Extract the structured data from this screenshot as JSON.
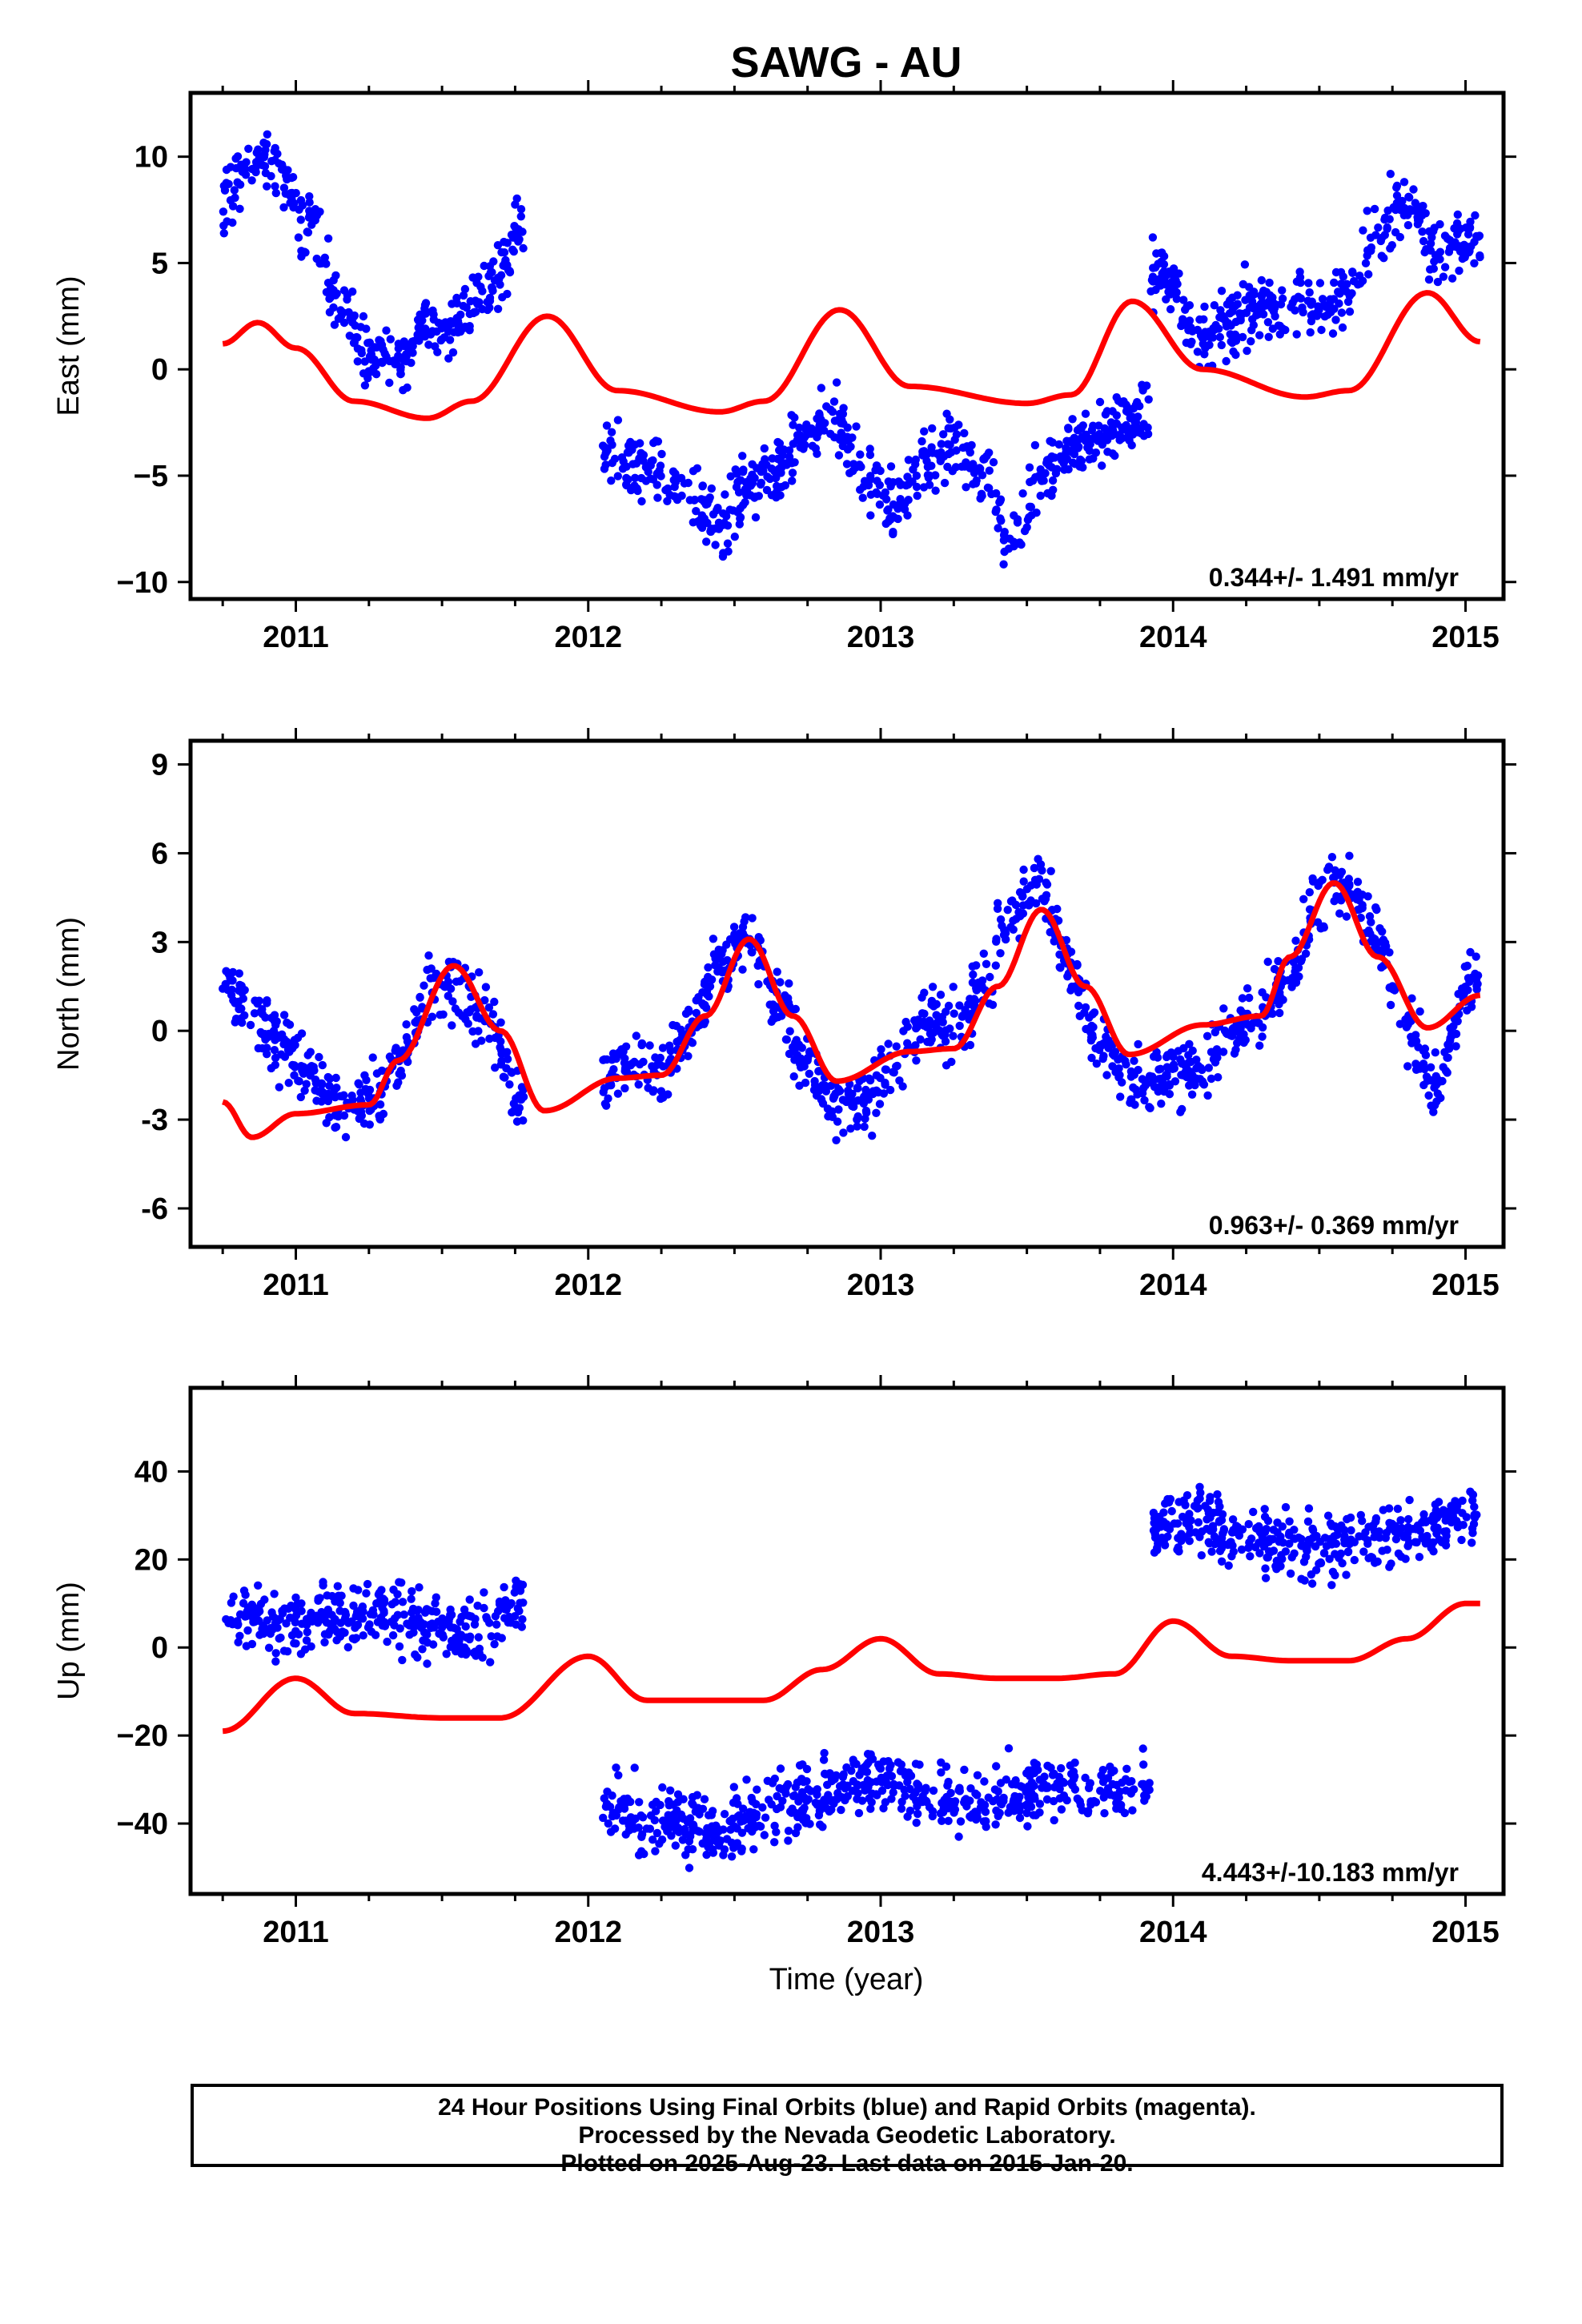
{
  "title": "SAWG - AU",
  "xlabel": "Time (year)",
  "caption": [
    "24 Hour Positions Using Final Orbits (blue) and Rapid Orbits (magenta).",
    "Processed by the Nevada Geodetic Laboratory.",
    "Plotted on 2025-Aug-23. Last data on 2015-Jan-20."
  ],
  "colors": {
    "data": "#0000ff",
    "fit": "#ff0000"
  },
  "chart_data": [
    {
      "type": "scatter",
      "panel": "east",
      "ylabel": "East (mm)",
      "xlim": [
        2010.64,
        2015.13
      ],
      "ylim": [
        -10.8,
        13
      ],
      "xticks": [
        2011,
        2012,
        2013,
        2014,
        2015
      ],
      "yticks": [
        -10,
        -5,
        0,
        5,
        10
      ],
      "ytick_labels": [
        "−10",
        "−5",
        "0",
        "5",
        "10"
      ],
      "rate": "0.344+/- 1.491 mm/yr",
      "data_segments": [
        {
          "x": [
            2010.75,
            2010.85,
            2010.95,
            2011.05,
            2011.15,
            2011.25,
            2011.35,
            2011.45,
            2011.55,
            2011.65,
            2011.78
          ],
          "y": [
            8.0,
            10.0,
            9.0,
            6.5,
            3.0,
            0.5,
            0.5,
            2.0,
            2.5,
            4.0,
            6.5
          ]
        },
        {
          "x": [
            2012.05,
            2012.15,
            2012.25,
            2012.35,
            2012.45,
            2012.55,
            2012.65,
            2012.75,
            2012.85,
            2012.95,
            2013.05,
            2013.15,
            2013.25,
            2013.35,
            2013.45,
            2013.55,
            2013.65,
            2013.75,
            2013.85,
            2013.92
          ],
          "y": [
            -4.0,
            -4.5,
            -5.0,
            -6.0,
            -7.5,
            -5.5,
            -4.5,
            -3.0,
            -2.5,
            -5.0,
            -6.5,
            -4.5,
            -3.5,
            -5.0,
            -8.0,
            -5.0,
            -3.5,
            -3.0,
            -2.5,
            -2.0
          ]
        },
        {
          "x": [
            2013.92,
            2014.0,
            2014.1,
            2014.2,
            2014.3,
            2014.4,
            2014.5,
            2014.6,
            2014.7,
            2014.8,
            2014.9,
            2015.0,
            2015.05
          ],
          "y": [
            4.5,
            4.0,
            1.0,
            2.5,
            3.0,
            3.0,
            3.0,
            3.5,
            6.5,
            8.0,
            5.5,
            6.0,
            6.0
          ]
        }
      ],
      "fit_curve": {
        "x": [
          2010.75,
          2010.87,
          2011.0,
          2011.2,
          2011.45,
          2011.6,
          2011.86,
          2012.1,
          2012.45,
          2012.6,
          2012.86,
          2013.1,
          2013.5,
          2013.65,
          2013.86,
          2014.1,
          2014.45,
          2014.6,
          2014.87,
          2015.05
        ],
        "y": [
          1.2,
          2.2,
          1.0,
          -1.5,
          -2.3,
          -1.5,
          2.5,
          -1.0,
          -2.0,
          -1.5,
          2.8,
          -0.8,
          -1.6,
          -1.2,
          3.2,
          0.0,
          -1.3,
          -1.0,
          3.6,
          1.3
        ]
      }
    },
    {
      "type": "scatter",
      "panel": "north",
      "ylabel": "North (mm)",
      "xlim": [
        2010.64,
        2015.13
      ],
      "ylim": [
        -7.3,
        9.8
      ],
      "xticks": [
        2011,
        2012,
        2013,
        2014,
        2015
      ],
      "yticks": [
        -6,
        -3,
        0,
        3,
        6,
        9
      ],
      "ytick_labels": [
        "-6",
        "-3",
        "0",
        "3",
        "6",
        "9"
      ],
      "rate": "0.963+/- 0.369 mm/yr",
      "data_segments": [
        {
          "x": [
            2010.75,
            2010.85,
            2010.95,
            2011.05,
            2011.15,
            2011.25,
            2011.35,
            2011.45,
            2011.55,
            2011.65,
            2011.78
          ],
          "y": [
            1.5,
            0.5,
            -0.5,
            -1.5,
            -2.5,
            -2.5,
            -1.0,
            1.0,
            1.5,
            0.5,
            -2.5
          ]
        },
        {
          "x": [
            2012.05,
            2012.15,
            2012.25,
            2012.35,
            2012.45,
            2012.55,
            2012.65,
            2012.75,
            2012.85,
            2012.95,
            2013.05,
            2013.15,
            2013.25,
            2013.35,
            2013.45,
            2013.55,
            2013.65,
            2013.75,
            2013.85,
            2013.92
          ],
          "y": [
            -1.5,
            -1.0,
            -1.5,
            0.0,
            2.5,
            3.0,
            1.0,
            -1.0,
            -2.5,
            -2.5,
            -1.0,
            0.5,
            0.0,
            1.5,
            4.0,
            5.0,
            2.0,
            -0.5,
            -1.5,
            -2.0
          ]
        },
        {
          "x": [
            2013.92,
            2014.0,
            2014.1,
            2014.2,
            2014.3,
            2014.4,
            2014.5,
            2014.6,
            2014.7,
            2014.8,
            2014.9,
            2015.0,
            2015.05
          ],
          "y": [
            -1.5,
            -1.5,
            -1.5,
            0.0,
            0.5,
            2.0,
            4.5,
            5.0,
            3.0,
            0.0,
            -2.0,
            1.5,
            2.0
          ]
        }
      ],
      "fit_curve": {
        "x": [
          2010.75,
          2010.85,
          2011.0,
          2011.25,
          2011.35,
          2011.54,
          2011.7,
          2011.85,
          2012.1,
          2012.25,
          2012.4,
          2012.55,
          2012.7,
          2012.85,
          2013.1,
          2013.25,
          2013.4,
          2013.55,
          2013.7,
          2013.85,
          2014.1,
          2014.3,
          2014.4,
          2014.55,
          2014.7,
          2014.87,
          2015.05
        ],
        "y": [
          -2.4,
          -3.6,
          -2.8,
          -2.5,
          -1.0,
          2.2,
          0.0,
          -2.7,
          -1.6,
          -1.5,
          0.5,
          3.1,
          0.5,
          -1.7,
          -0.7,
          -0.6,
          1.5,
          4.1,
          1.5,
          -0.8,
          0.2,
          0.5,
          2.5,
          5.0,
          2.5,
          0.1,
          1.2
        ]
      }
    },
    {
      "type": "scatter",
      "panel": "up",
      "ylabel": "Up (mm)",
      "xlim": [
        2010.64,
        2015.13
      ],
      "ylim": [
        -56,
        59
      ],
      "xticks": [
        2011,
        2012,
        2013,
        2014,
        2015
      ],
      "yticks": [
        -40,
        -20,
        0,
        20,
        40
      ],
      "ytick_labels": [
        "−40",
        "−20",
        "0",
        "20",
        "40"
      ],
      "rate": "4.443+/-10.183 mm/yr",
      "data_segments": [
        {
          "x": [
            2010.75,
            2010.85,
            2010.95,
            2011.05,
            2011.15,
            2011.25,
            2011.35,
            2011.45,
            2011.55,
            2011.65,
            2011.78
          ],
          "y": [
            6.0,
            7.0,
            5.0,
            6.0,
            8.0,
            8.0,
            7.0,
            5.0,
            4.0,
            5.0,
            10.0
          ]
        },
        {
          "x": [
            2012.05,
            2012.15,
            2012.25,
            2012.35,
            2012.45,
            2012.55,
            2012.65,
            2012.75,
            2012.85,
            2012.95,
            2013.05,
            2013.15,
            2013.25,
            2013.35,
            2013.45,
            2013.55,
            2013.65,
            2013.75,
            2013.85,
            2013.92
          ],
          "y": [
            -35.0,
            -38.0,
            -39.0,
            -40.0,
            -42.0,
            -39.0,
            -36.0,
            -34.0,
            -32.0,
            -30.0,
            -30.0,
            -33.0,
            -35.0,
            -36.0,
            -34.0,
            -33.0,
            -32.0,
            -33.0,
            -32.0,
            -31.0
          ]
        },
        {
          "x": [
            2013.92,
            2014.0,
            2014.1,
            2014.2,
            2014.3,
            2014.4,
            2014.5,
            2014.6,
            2014.7,
            2014.8,
            2014.9,
            2015.0,
            2015.05
          ],
          "y": [
            26.0,
            27.0,
            28.0,
            26.0,
            25.0,
            24.0,
            23.0,
            24.0,
            25.0,
            26.0,
            27.0,
            30.0,
            30.0
          ]
        }
      ],
      "fit_curve": {
        "x": [
          2010.75,
          2011.0,
          2011.2,
          2011.5,
          2011.7,
          2012.0,
          2012.2,
          2012.4,
          2012.6,
          2012.8,
          2013.0,
          2013.2,
          2013.4,
          2013.6,
          2013.8,
          2014.0,
          2014.2,
          2014.4,
          2014.6,
          2014.8,
          2015.0,
          2015.05
        ],
        "y": [
          -19.0,
          -7.0,
          -15.0,
          -16.0,
          -16.0,
          -2.0,
          -12.0,
          -12.0,
          -12.0,
          -5.0,
          2.0,
          -6.0,
          -7.0,
          -7.0,
          -6.0,
          6.0,
          -2.0,
          -3.0,
          -3.0,
          2.0,
          10.0,
          10.0
        ]
      }
    }
  ]
}
